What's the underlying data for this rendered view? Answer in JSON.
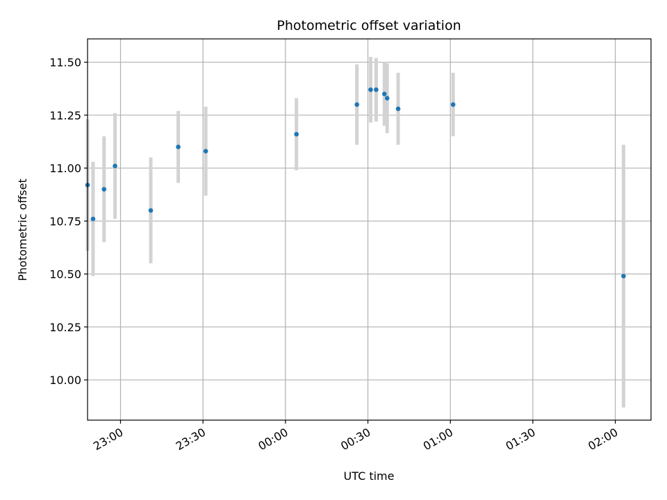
{
  "chart_data": {
    "type": "scatter",
    "title": "Photometric offset variation",
    "xlabel": "UTC time",
    "ylabel": "Photometric offset",
    "xlim": [
      "22:48",
      "02:13"
    ],
    "ylim": [
      9.81,
      11.61
    ],
    "x_ticks": [
      "23:00",
      "23:30",
      "00:00",
      "00:30",
      "01:00",
      "01:30",
      "02:00"
    ],
    "y_ticks": [
      "10.00",
      "10.25",
      "10.50",
      "10.75",
      "11.00",
      "11.25",
      "11.50"
    ],
    "grid": true,
    "point_color": "#1f77b4",
    "errorbar_color": "#d3d3d3",
    "points": [
      {
        "x": "22:48",
        "y": 10.92,
        "err": 0.31
      },
      {
        "x": "22:50",
        "y": 10.76,
        "err": 0.27
      },
      {
        "x": "22:54",
        "y": 10.9,
        "err": 0.25
      },
      {
        "x": "22:58",
        "y": 11.01,
        "err": 0.25
      },
      {
        "x": "23:11",
        "y": 10.8,
        "err": 0.25
      },
      {
        "x": "23:21",
        "y": 11.1,
        "err": 0.17
      },
      {
        "x": "23:31",
        "y": 11.08,
        "err": 0.21
      },
      {
        "x": "00:04",
        "y": 11.16,
        "err": 0.17
      },
      {
        "x": "00:26",
        "y": 11.3,
        "err": 0.19
      },
      {
        "x": "00:31",
        "y": 11.37,
        "err": 0.155
      },
      {
        "x": "00:33",
        "y": 11.37,
        "err": 0.15
      },
      {
        "x": "00:36",
        "y": 11.35,
        "err": 0.15
      },
      {
        "x": "00:37",
        "y": 11.33,
        "err": 0.165
      },
      {
        "x": "00:41",
        "y": 11.28,
        "err": 0.17
      },
      {
        "x": "01:01",
        "y": 11.3,
        "err": 0.15
      },
      {
        "x": "02:03",
        "y": 10.49,
        "err": 0.62
      }
    ]
  }
}
